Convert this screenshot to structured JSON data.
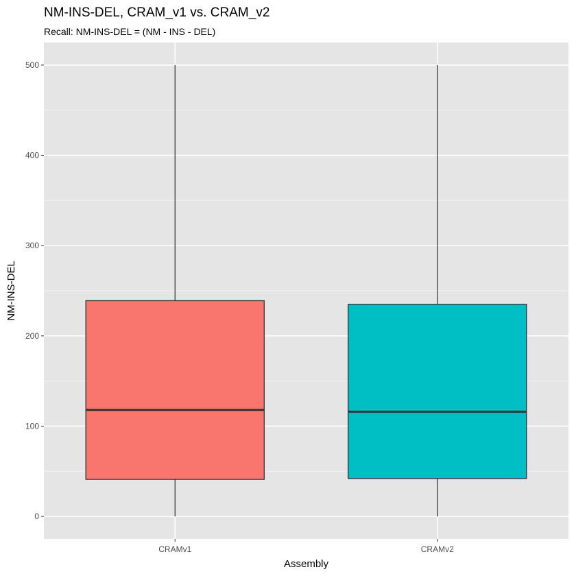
{
  "chart_data": {
    "type": "boxplot",
    "title": "NM-INS-DEL, CRAM_v1 vs. CRAM_v2",
    "subtitle": "Recall: NM-INS-DEL = (NM - INS - DEL)",
    "xlabel": "Assembly",
    "ylabel": "NM-INS-DEL",
    "ylim": [
      -25,
      525
    ],
    "yticks": [
      0,
      100,
      200,
      300,
      400,
      500
    ],
    "ytick_labels": [
      "0",
      "100",
      "200",
      "300",
      "400",
      "500"
    ],
    "categories": [
      "CRAMv1",
      "CRAMv2"
    ],
    "boxes": [
      {
        "category": "CRAMv1",
        "min": 0,
        "q1": 41,
        "median": 118,
        "q3": 239,
        "max": 500,
        "color": "#F8766D"
      },
      {
        "category": "CRAMv2",
        "min": 0,
        "q1": 42,
        "median": 116,
        "q3": 235,
        "max": 500,
        "color": "#00BFC4"
      }
    ],
    "grid": true,
    "panel_background": "#E5E5E5",
    "legend": "none"
  }
}
